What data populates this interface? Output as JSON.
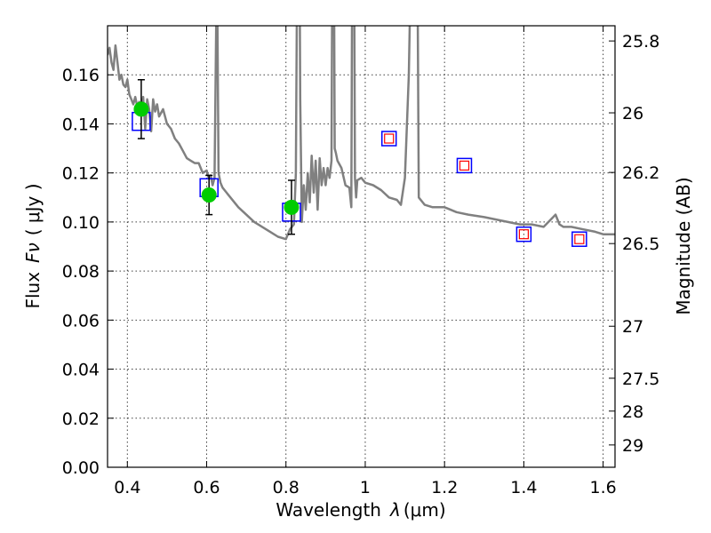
{
  "chart_data": {
    "type": "scatter",
    "xlabel": "Wavelength",
    "xlabel_symbol": "λ",
    "xlabel_unit": "(μm)",
    "ylabel": "Flux",
    "ylabel_symbol": "Fν",
    "ylabel_unit": "( μJy )",
    "y2label": "Magnitude (AB)",
    "xlim": [
      0.35,
      1.63
    ],
    "ylim": [
      0.0,
      0.18
    ],
    "grid": true,
    "x_ticks": [
      0.4,
      0.6,
      0.8,
      1.0,
      1.2,
      1.4,
      1.6
    ],
    "x_tick_labels": [
      "0.4",
      "0.6",
      "0.8",
      "1",
      "1.2",
      "1.4",
      "1.6"
    ],
    "y_ticks": [
      0.0,
      0.02,
      0.04,
      0.06,
      0.08,
      0.1,
      0.12,
      0.14,
      0.16
    ],
    "y_tick_labels": [
      "0.00",
      "0.02",
      "0.04",
      "0.06",
      "0.08",
      "0.10",
      "0.12",
      "0.14",
      "0.16"
    ],
    "y2_ticks": [
      {
        "label": "25.8",
        "flux": 0.1738
      },
      {
        "label": "26",
        "flux": 0.1445
      },
      {
        "label": "26.2",
        "flux": 0.1202
      },
      {
        "label": "26.5",
        "flux": 0.0912
      },
      {
        "label": "27",
        "flux": 0.0575
      },
      {
        "label": "27.5",
        "flux": 0.0363
      },
      {
        "label": "28",
        "flux": 0.0229
      },
      {
        "label": "29",
        "flux": 0.0091
      }
    ],
    "colors": {
      "sed": "#808080",
      "observed": "#00cc00",
      "model_box": "#0000ff",
      "model_small": "#ff0000",
      "errorbar": "#000000"
    },
    "sed": {
      "x": [
        0.35,
        0.355,
        0.36,
        0.365,
        0.37,
        0.375,
        0.38,
        0.385,
        0.39,
        0.395,
        0.4,
        0.405,
        0.41,
        0.415,
        0.42,
        0.425,
        0.43,
        0.435,
        0.44,
        0.445,
        0.45,
        0.455,
        0.46,
        0.465,
        0.47,
        0.475,
        0.48,
        0.49,
        0.5,
        0.51,
        0.52,
        0.53,
        0.54,
        0.55,
        0.56,
        0.57,
        0.58,
        0.59,
        0.6,
        0.605,
        0.61,
        0.615,
        0.62,
        0.623,
        0.626,
        0.63,
        0.635,
        0.64,
        0.66,
        0.68,
        0.7,
        0.72,
        0.74,
        0.76,
        0.78,
        0.8,
        0.81,
        0.82,
        0.825,
        0.83,
        0.833,
        0.836,
        0.84,
        0.845,
        0.85,
        0.855,
        0.86,
        0.865,
        0.87,
        0.875,
        0.88,
        0.885,
        0.89,
        0.895,
        0.9,
        0.905,
        0.91,
        0.915,
        0.918,
        0.92,
        0.923,
        0.926,
        0.93,
        0.94,
        0.95,
        0.96,
        0.965,
        0.968,
        0.971,
        0.974,
        0.977,
        0.98,
        0.99,
        1.0,
        1.02,
        1.04,
        1.06,
        1.08,
        1.09,
        1.1,
        1.11,
        1.12,
        1.13,
        1.135,
        1.15,
        1.17,
        1.2,
        1.23,
        1.26,
        1.3,
        1.33,
        1.36,
        1.39,
        1.42,
        1.45,
        1.48,
        1.49,
        1.5,
        1.52,
        1.55,
        1.58,
        1.6,
        1.63
      ],
      "y": [
        0.168,
        0.171,
        0.165,
        0.162,
        0.172,
        0.165,
        0.158,
        0.16,
        0.156,
        0.155,
        0.158,
        0.152,
        0.15,
        0.148,
        0.151,
        0.147,
        0.149,
        0.145,
        0.151,
        0.138,
        0.15,
        0.146,
        0.137,
        0.15,
        0.145,
        0.148,
        0.143,
        0.146,
        0.14,
        0.138,
        0.134,
        0.132,
        0.129,
        0.126,
        0.125,
        0.124,
        0.124,
        0.12,
        0.121,
        0.118,
        0.119,
        0.115,
        0.118,
        0.165,
        0.21,
        0.12,
        0.116,
        0.114,
        0.11,
        0.106,
        0.103,
        0.1,
        0.098,
        0.096,
        0.094,
        0.093,
        0.097,
        0.099,
        0.12,
        0.25,
        0.25,
        0.15,
        0.1,
        0.115,
        0.105,
        0.12,
        0.108,
        0.127,
        0.112,
        0.125,
        0.105,
        0.126,
        0.115,
        0.122,
        0.115,
        0.122,
        0.118,
        0.125,
        0.25,
        0.25,
        0.13,
        0.128,
        0.125,
        0.122,
        0.115,
        0.114,
        0.106,
        0.25,
        0.25,
        0.118,
        0.11,
        0.117,
        0.118,
        0.116,
        0.115,
        0.113,
        0.11,
        0.109,
        0.107,
        0.118,
        0.16,
        0.25,
        0.25,
        0.11,
        0.107,
        0.106,
        0.106,
        0.104,
        0.103,
        0.102,
        0.101,
        0.1,
        0.099,
        0.099,
        0.098,
        0.103,
        0.099,
        0.098,
        0.098,
        0.097,
        0.096,
        0.095,
        0.095
      ]
    },
    "observed": [
      {
        "x": 0.435,
        "y": 0.146,
        "err": 0.012
      },
      {
        "x": 0.606,
        "y": 0.111,
        "err": 0.008
      },
      {
        "x": 0.814,
        "y": 0.106,
        "err": 0.011
      }
    ],
    "model_box": [
      {
        "x": 0.435,
        "y": 0.141,
        "size": "large"
      },
      {
        "x": 0.606,
        "y": 0.114,
        "size": "large"
      },
      {
        "x": 0.814,
        "y": 0.104,
        "size": "large"
      },
      {
        "x": 1.06,
        "y": 0.134,
        "size": "small"
      },
      {
        "x": 1.25,
        "y": 0.123,
        "size": "small"
      },
      {
        "x": 1.4,
        "y": 0.095,
        "size": "small"
      },
      {
        "x": 1.54,
        "y": 0.093,
        "size": "small"
      }
    ],
    "model_small": [
      {
        "x": 1.06,
        "y": 0.134
      },
      {
        "x": 1.25,
        "y": 0.123
      },
      {
        "x": 1.4,
        "y": 0.095
      },
      {
        "x": 1.54,
        "y": 0.093
      }
    ]
  }
}
